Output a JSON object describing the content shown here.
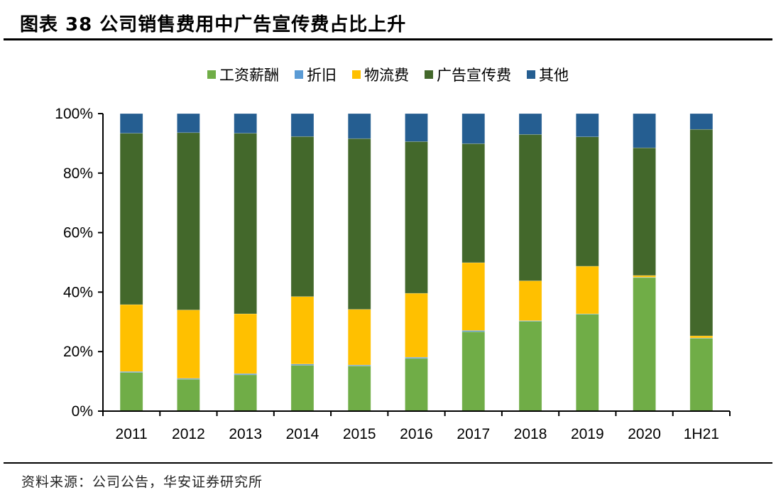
{
  "title": "图表 38  公司销售费用中广告宣传费占比上升",
  "source": "资料来源：公司公告，华安证券研究所",
  "chart_data": {
    "type": "bar",
    "stacked": true,
    "percent": true,
    "title": "",
    "xlabel": "",
    "ylabel": "",
    "ylim": [
      0,
      100
    ],
    "yticks": [
      "0%",
      "20%",
      "40%",
      "60%",
      "80%",
      "100%"
    ],
    "grid": false,
    "legend_position": "top",
    "categories": [
      "2011",
      "2012",
      "2013",
      "2014",
      "2015",
      "2016",
      "2017",
      "2018",
      "2019",
      "2020",
      "1H21"
    ],
    "series": [
      {
        "name": "工资薪酬",
        "color": "#70AD47",
        "values": [
          13.0,
          10.7,
          12.2,
          15.4,
          15.2,
          17.7,
          26.7,
          30.2,
          32.6,
          44.9,
          24.5
        ]
      },
      {
        "name": "折旧",
        "color": "#5B9BD5",
        "values": [
          0.3,
          0.3,
          0.4,
          0.4,
          0.3,
          0.4,
          0.4,
          0.2,
          0.1,
          0.1,
          0.1
        ]
      },
      {
        "name": "物流费",
        "color": "#FFC000",
        "values": [
          22.5,
          23.0,
          20.1,
          22.7,
          18.7,
          21.5,
          22.8,
          13.4,
          16.0,
          0.6,
          0.7
        ]
      },
      {
        "name": "广告宣传费",
        "color": "#43682B",
        "values": [
          57.6,
          59.6,
          60.7,
          53.8,
          57.4,
          51.0,
          40.0,
          49.2,
          43.5,
          42.9,
          69.4
        ]
      },
      {
        "name": "其他",
        "color": "#255E91",
        "values": [
          6.6,
          6.4,
          6.6,
          7.7,
          8.4,
          9.4,
          10.1,
          7.0,
          7.8,
          11.5,
          5.3
        ]
      }
    ]
  }
}
